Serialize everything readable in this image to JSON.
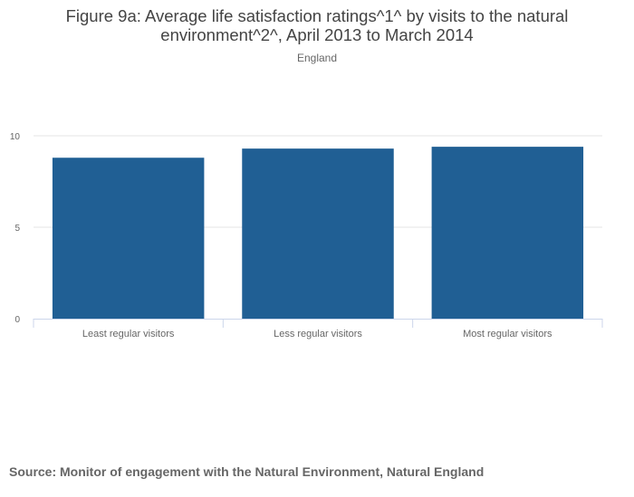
{
  "chart_data": {
    "type": "bar",
    "title": "Figure 9a: Average life satisfaction ratings^1^ by visits to the natural environment^2^, April 2013 to March 2014",
    "subtitle": "England",
    "categories": [
      "Least regular visitors",
      "Less regular visitors",
      "Most regular visitors"
    ],
    "values": [
      8.8,
      9.3,
      9.4
    ],
    "ylim": [
      0,
      10
    ],
    "yticks": [
      0,
      5,
      10
    ],
    "xlabel": "",
    "ylabel": "",
    "grid": true,
    "bar_color": "#205f94"
  },
  "source": "Source: Monitor of engagement with the Natural Environment, Natural England"
}
